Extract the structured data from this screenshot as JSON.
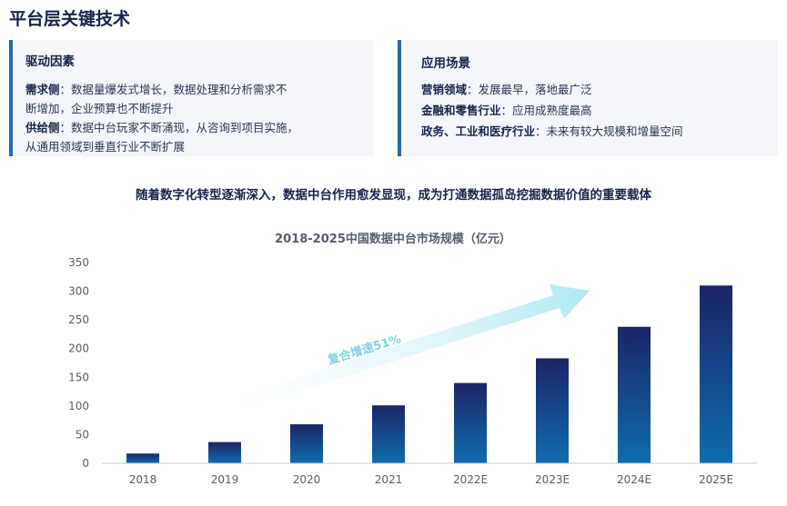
{
  "page": {
    "title": "平台层关键技术"
  },
  "drivers": {
    "heading": "驱动因素",
    "demand_label": "需求侧",
    "demand_text_1": "：数据量爆发式增长，数据处理和分析需求不",
    "demand_text_2": "断增加，企业预算也不断提升",
    "supply_label": "供给侧",
    "supply_text_1": "：数据中台玩家不断涌现，从咨询到项目实施，",
    "supply_text_2": "从通用领域到垂直行业不断扩展"
  },
  "scenarios": {
    "heading": "应用场景",
    "items": [
      {
        "label": "营销领域",
        "text": "：发展最早，落地最广泛"
      },
      {
        "label": "金融和零售行业",
        "text": "：应用成熟度最高"
      },
      {
        "label": "政务、工业和医疗行业",
        "text": "：未来有较大规模和增量空间"
      }
    ]
  },
  "subtitle": "随着数字化转型逐渐深入，数据中台作用愈发显现，成为打通数据孤岛挖掘数据价值的重要载体",
  "colors": {
    "bar_top": "#1c2466",
    "bar_bottom": "#0e6db0",
    "accent": "#2a6aa8",
    "arrow": "#aee8f2"
  },
  "chart_data": {
    "type": "bar",
    "title": "2018-2025中国数据中台市场规模（亿元）",
    "categories": [
      "2018",
      "2019",
      "2020",
      "2021",
      "2022E",
      "2023E",
      "2024E",
      "2025E"
    ],
    "values": [
      17,
      37,
      68,
      101,
      140,
      183,
      238,
      310
    ],
    "ylim": [
      0,
      350
    ],
    "yticks": [
      0,
      50,
      100,
      150,
      200,
      250,
      300,
      350
    ],
    "annotation": "复合增速51%",
    "grid": false
  }
}
